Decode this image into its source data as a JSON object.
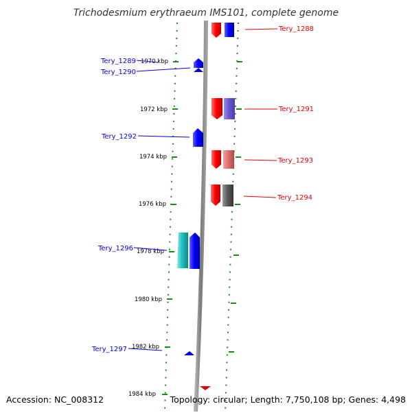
{
  "title": "Trichodesmium erythraeum IMS101, complete genome",
  "footer": {
    "accession": "Accession: NC_008312",
    "topology": "Topology: circular; Length: 7,750,108 bp; Genes: 4,498"
  },
  "kbp_labels": [
    "1970 kbp",
    "1972 kbp",
    "1974 kbp",
    "1976 kbp",
    "1978 kbp",
    "1980 kbp",
    "1982 kbp",
    "1984 kbp"
  ],
  "gene_labels": {
    "left": [
      "Tery_1289",
      "Tery_1290",
      "Tery_1292",
      "Tery_1296",
      "Tery_1297"
    ],
    "right": [
      "Tery_1288",
      "Tery_1291",
      "Tery_1293",
      "Tery_1294"
    ]
  },
  "colors": {
    "backbone": "#8a8a8a",
    "ruler": "#1a8a1a",
    "forward_strand": "#e00000",
    "reverse_strand": "#0000e0",
    "cds_blue": "#1010ff",
    "cds_purple": "#6a5acd",
    "cds_pink": "#e07070",
    "cds_gray": "#5a5a5a",
    "cds_cyan": "#20c0c0"
  }
}
